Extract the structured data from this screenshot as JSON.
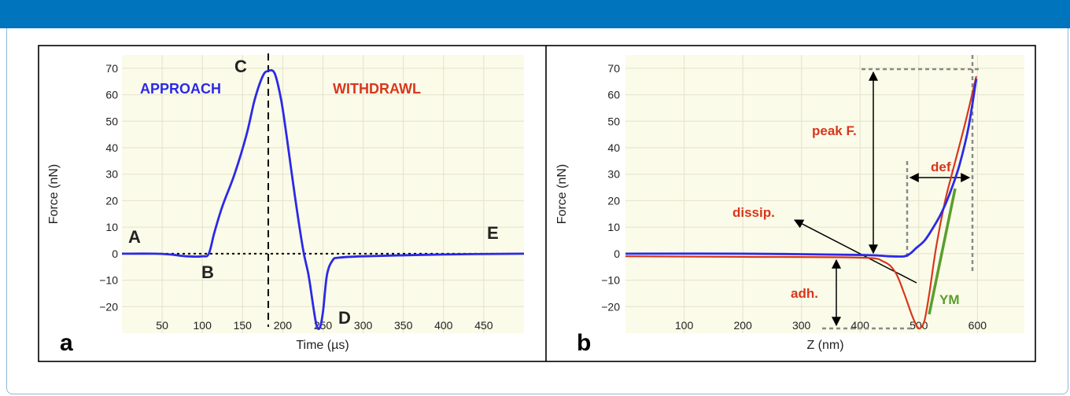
{
  "colors": {
    "header": "#0074bd",
    "plot_bg": "#fbfbe9",
    "grid": "#e2e2cc",
    "approach": "#2a2ae6",
    "withdraw": "#d7371c",
    "ym": "#5a9e2c",
    "annotation_text": "#d7371c",
    "guide": "#8a8a8a",
    "axis": "#000000"
  },
  "panels": {
    "a": {
      "letter": "a"
    },
    "b": {
      "letter": "b"
    }
  },
  "chart_data": [
    {
      "type": "line",
      "panel": "a",
      "xlabel": "Time (µs)",
      "ylabel": "Force (nN)",
      "xlim": [
        0,
        500
      ],
      "ylim": [
        -30,
        75
      ],
      "xticks": [
        50,
        100,
        150,
        200,
        250,
        300,
        350,
        400,
        450
      ],
      "yticks": [
        -20,
        -10,
        0,
        10,
        20,
        30,
        40,
        50,
        60,
        70
      ],
      "grid": true,
      "series": [
        {
          "color_key": "approach",
          "x": [
            0,
            40,
            60,
            80,
            100,
            108,
            115,
            125,
            140,
            155,
            165,
            175,
            182,
            190,
            198,
            205,
            215,
            225,
            232,
            238,
            242,
            246,
            250,
            255,
            262,
            270,
            300,
            400,
            500
          ],
          "y": [
            0,
            0,
            -0.3,
            -1,
            -1,
            0,
            8,
            18,
            30,
            45,
            58,
            67,
            69,
            68,
            58,
            44,
            22,
            2,
            -8,
            -20,
            -27,
            -28,
            -22,
            -8,
            -2.5,
            -1.5,
            -1,
            -0.3,
            0
          ]
        }
      ],
      "reference_lines": [
        {
          "orientation": "horizontal",
          "value": 0,
          "style": "dotted"
        },
        {
          "orientation": "vertical",
          "value": 182,
          "style": "dashed"
        }
      ],
      "annotations": [
        {
          "text": "APPROACH",
          "color_key": "approach"
        },
        {
          "text": "WITHDRAWL",
          "color_key": "withdraw"
        },
        {
          "text": "A"
        },
        {
          "text": "B"
        },
        {
          "text": "C"
        },
        {
          "text": "D"
        },
        {
          "text": "E"
        }
      ]
    },
    {
      "type": "line",
      "panel": "b",
      "xlabel": "Z (nm)",
      "ylabel": "Force (nN)",
      "xlim": [
        0,
        680
      ],
      "ylim": [
        -30,
        75
      ],
      "xticks": [
        100,
        200,
        300,
        400,
        500,
        600
      ],
      "yticks": [
        -20,
        -10,
        0,
        10,
        20,
        30,
        40,
        50,
        60,
        70
      ],
      "grid": true,
      "series": [
        {
          "color_key": "withdraw",
          "x": [
            0,
            200,
            400,
            440,
            460,
            475,
            488,
            497,
            503,
            510,
            518,
            530,
            545,
            560,
            580,
            598
          ],
          "y": [
            -1,
            -1.2,
            -1.5,
            -3,
            -7,
            -15,
            -23,
            -27.5,
            -28,
            -25,
            -15,
            3,
            20,
            33,
            50,
            67
          ]
        },
        {
          "color_key": "approach",
          "x": [
            0,
            200,
            400,
            450,
            475,
            485,
            495,
            510,
            525,
            540,
            555,
            570,
            585,
            598
          ],
          "y": [
            0,
            0,
            -0.5,
            -1,
            -1,
            0,
            2,
            5,
            10,
            16,
            24,
            34,
            48,
            66
          ]
        }
      ],
      "annotations": [
        {
          "text": "peak F.",
          "color_key": "annotation_text"
        },
        {
          "text": "def.",
          "color_key": "annotation_text"
        },
        {
          "text": "dissip.",
          "color_key": "annotation_text"
        },
        {
          "text": "adh.",
          "color_key": "annotation_text"
        },
        {
          "text": "YM",
          "color_key": "ym"
        }
      ]
    }
  ]
}
